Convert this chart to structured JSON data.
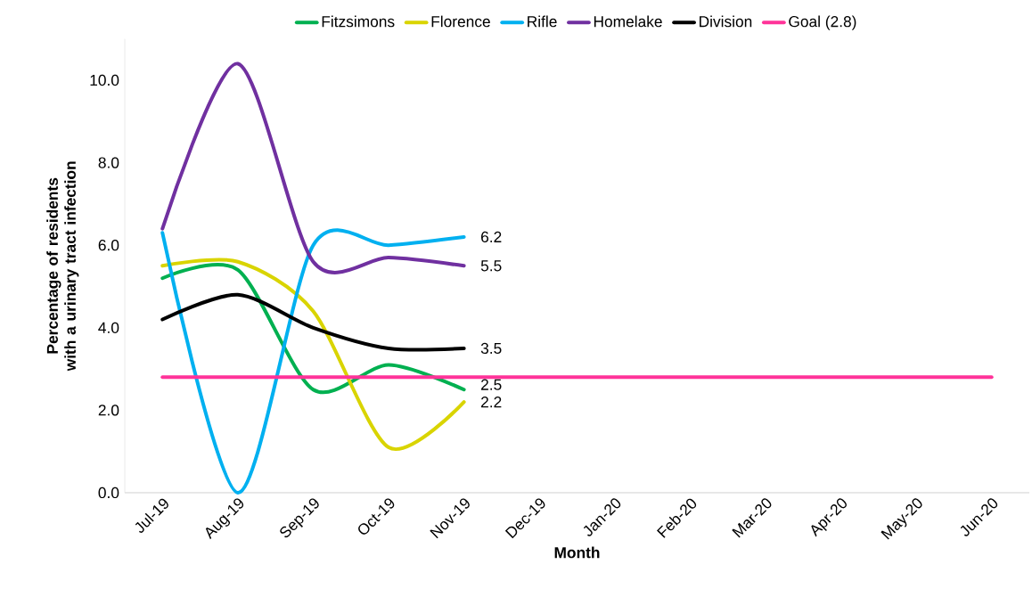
{
  "chart_data": {
    "type": "line",
    "xlabel": "Month",
    "ylabel": "Percentage of residents with a urinary tract infection",
    "categories": [
      "Jul-19",
      "Aug-19",
      "Sep-19",
      "Oct-19",
      "Nov-19",
      "Dec-19",
      "Jan-20",
      "Feb-20",
      "Mar-20",
      "Apr-20",
      "May-20",
      "Jun-20"
    ],
    "series": [
      {
        "name": "Fitzsimons",
        "color": "#00b050",
        "values": [
          5.2,
          5.4,
          2.5,
          3.1,
          2.5,
          null,
          null,
          null,
          null,
          null,
          null,
          null
        ],
        "value_labels": [
          null,
          null,
          null,
          null,
          "2.5",
          null,
          null,
          null,
          null,
          null,
          null,
          null
        ]
      },
      {
        "name": "Florence",
        "color": "#d9d400",
        "values": [
          5.5,
          5.6,
          4.4,
          1.1,
          2.2,
          null,
          null,
          null,
          null,
          null,
          null,
          null
        ],
        "value_labels": [
          null,
          null,
          null,
          null,
          "2.2",
          null,
          null,
          null,
          null,
          null,
          null,
          null
        ]
      },
      {
        "name": "Rifle",
        "color": "#00b0f0",
        "values": [
          6.3,
          0.0,
          6.0,
          6.0,
          6.2,
          null,
          null,
          null,
          null,
          null,
          null,
          null
        ],
        "value_labels": [
          null,
          null,
          null,
          null,
          "6.2",
          null,
          null,
          null,
          null,
          null,
          null,
          null
        ]
      },
      {
        "name": "Homelake",
        "color": "#7030a0",
        "values": [
          6.4,
          10.4,
          5.6,
          5.7,
          5.5,
          null,
          null,
          null,
          null,
          null,
          null,
          null
        ],
        "value_labels": [
          null,
          null,
          null,
          null,
          "5.5",
          null,
          null,
          null,
          null,
          null,
          null,
          null
        ]
      },
      {
        "name": "Division",
        "color": "#000000",
        "values": [
          4.2,
          4.8,
          4.0,
          3.5,
          3.5,
          null,
          null,
          null,
          null,
          null,
          null,
          null
        ],
        "value_labels": [
          null,
          null,
          null,
          null,
          "3.5",
          null,
          null,
          null,
          null,
          null,
          null,
          null
        ]
      },
      {
        "name": "Goal (2.8)",
        "color": "#ff3399",
        "values": [
          2.8,
          2.8,
          2.8,
          2.8,
          2.8,
          2.8,
          2.8,
          2.8,
          2.8,
          2.8,
          2.8,
          2.8
        ]
      }
    ],
    "ylim": [
      0,
      11
    ],
    "yticks": [
      {
        "value": 0,
        "label": "0.0"
      },
      {
        "value": 2,
        "label": "2.0"
      },
      {
        "value": 4,
        "label": "4.0"
      },
      {
        "value": 6,
        "label": "6.0"
      },
      {
        "value": 8,
        "label": "8.0"
      },
      {
        "value": 10,
        "label": "10.0"
      }
    ],
    "legend": "top",
    "grid": false,
    "marker": "none",
    "line_style": "solid"
  }
}
